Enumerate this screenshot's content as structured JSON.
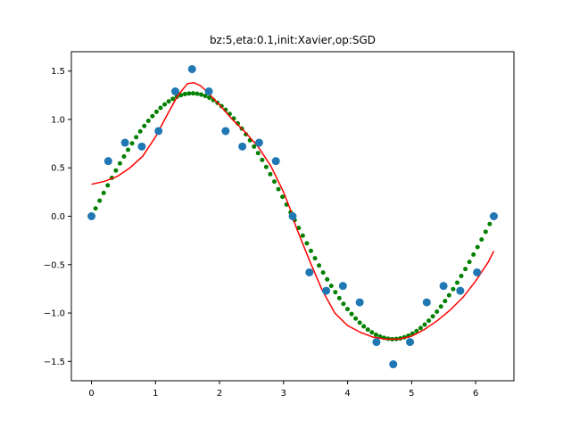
{
  "chart_data": {
    "type": "scatter",
    "title": "bz:5,eta:0.1,init:Xavier,op:SGD",
    "xlabel": "",
    "ylabel": "",
    "xlim": [
      -0.3142,
      6.5973
    ],
    "ylim": [
      -1.7,
      1.7
    ],
    "x_ticks": [
      0,
      1,
      2,
      3,
      4,
      5,
      6
    ],
    "x_tick_labels": [
      "0",
      "1",
      "2",
      "3",
      "4",
      "5",
      "6"
    ],
    "y_ticks": [
      -1.5,
      -1.0,
      -0.5,
      0.0,
      0.5,
      1.0,
      1.5
    ],
    "y_tick_labels": [
      "−1.5",
      "−1.0",
      "−0.5",
      "0.0",
      "0.5",
      "1.0",
      "1.5"
    ],
    "grid": false,
    "series": [
      {
        "kind": "scatter-large",
        "color": "#1f77b4",
        "points": [
          [
            0.0,
            0.0
          ],
          [
            0.2618,
            0.57
          ],
          [
            0.5236,
            0.76
          ],
          [
            0.7854,
            0.72
          ],
          [
            1.0472,
            0.88
          ],
          [
            1.309,
            1.29
          ],
          [
            1.5708,
            1.52
          ],
          [
            1.8326,
            1.29
          ],
          [
            2.0944,
            0.88
          ],
          [
            2.3562,
            0.72
          ],
          [
            2.618,
            0.76
          ],
          [
            2.8798,
            0.57
          ],
          [
            3.1416,
            0.0
          ],
          [
            3.4034,
            -0.58
          ],
          [
            3.6652,
            -0.77
          ],
          [
            3.927,
            -0.72
          ],
          [
            4.1888,
            -0.89
          ],
          [
            4.4506,
            -1.3
          ],
          [
            4.7124,
            -1.53
          ],
          [
            4.9742,
            -1.3
          ],
          [
            5.236,
            -0.89
          ],
          [
            5.4978,
            -0.72
          ],
          [
            5.7596,
            -0.77
          ],
          [
            6.0214,
            -0.58
          ],
          [
            6.2832,
            0.0
          ]
        ]
      },
      {
        "kind": "dots-small",
        "color": "#008000",
        "function": "1.27*sin(x)",
        "x_start": 0.0,
        "x_end": 6.2832,
        "count": 100
      },
      {
        "kind": "line",
        "color": "#ff0000",
        "points": [
          [
            0.0,
            0.33
          ],
          [
            0.2,
            0.36
          ],
          [
            0.4,
            0.41
          ],
          [
            0.6,
            0.5
          ],
          [
            0.8,
            0.62
          ],
          [
            1.0,
            0.82
          ],
          [
            1.2,
            1.07
          ],
          [
            1.35,
            1.25
          ],
          [
            1.5,
            1.37
          ],
          [
            1.6,
            1.38
          ],
          [
            1.7,
            1.35
          ],
          [
            1.8,
            1.29
          ],
          [
            2.0,
            1.15
          ],
          [
            2.2,
            1.0
          ],
          [
            2.4,
            0.87
          ],
          [
            2.6,
            0.72
          ],
          [
            2.8,
            0.52
          ],
          [
            3.0,
            0.25
          ],
          [
            3.1,
            0.08
          ],
          [
            3.2,
            -0.12
          ],
          [
            3.4,
            -0.45
          ],
          [
            3.6,
            -0.76
          ],
          [
            3.8,
            -1.0
          ],
          [
            4.0,
            -1.13
          ],
          [
            4.2,
            -1.2
          ],
          [
            4.4,
            -1.25
          ],
          [
            4.6,
            -1.27
          ],
          [
            4.8,
            -1.27
          ],
          [
            5.0,
            -1.24
          ],
          [
            5.2,
            -1.17
          ],
          [
            5.4,
            -1.08
          ],
          [
            5.6,
            -0.97
          ],
          [
            5.8,
            -0.84
          ],
          [
            6.0,
            -0.67
          ],
          [
            6.2,
            -0.47
          ],
          [
            6.2832,
            -0.36
          ]
        ]
      }
    ]
  }
}
